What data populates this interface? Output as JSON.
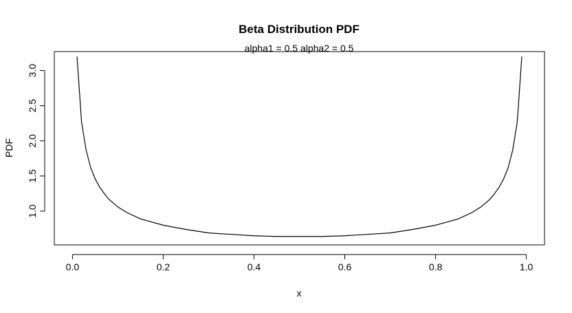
{
  "chart_data": {
    "type": "line",
    "title": "Beta Distribution PDF",
    "subtitle": "alpha1 = 0.5  alpha2 = 0.5",
    "xlabel": "x",
    "ylabel": "PDF",
    "xlim": [
      -0.04,
      1.04
    ],
    "ylim": [
      0.52,
      3.27
    ],
    "x_ticks": [
      0.0,
      0.2,
      0.4,
      0.6,
      0.8,
      1.0
    ],
    "x_tick_labels": [
      "0.0",
      "0.2",
      "0.4",
      "0.6",
      "0.8",
      "1.0"
    ],
    "y_ticks": [
      1.0,
      1.5,
      2.0,
      2.5,
      3.0
    ],
    "y_tick_labels": [
      "1.0",
      "1.5",
      "2.0",
      "2.5",
      "3.0"
    ],
    "grid": false,
    "legend": "none",
    "line_color": "#000000",
    "series": [
      {
        "x": [
          0.01,
          0.02,
          0.03,
          0.04,
          0.05,
          0.06,
          0.07,
          0.08,
          0.1,
          0.12,
          0.15,
          0.2,
          0.25,
          0.3,
          0.35,
          0.4,
          0.45,
          0.5,
          0.55,
          0.6,
          0.65,
          0.7,
          0.75,
          0.8,
          0.85,
          0.88,
          0.9,
          0.92,
          0.93,
          0.94,
          0.95,
          0.96,
          0.97,
          0.98,
          0.99
        ],
        "values": [
          3.2,
          2.27,
          1.87,
          1.62,
          1.46,
          1.34,
          1.25,
          1.17,
          1.06,
          0.98,
          0.89,
          0.8,
          0.74,
          0.69,
          0.67,
          0.65,
          0.64,
          0.64,
          0.64,
          0.65,
          0.67,
          0.69,
          0.74,
          0.8,
          0.89,
          0.98,
          1.06,
          1.17,
          1.25,
          1.34,
          1.46,
          1.62,
          1.87,
          2.27,
          3.2
        ]
      }
    ]
  }
}
